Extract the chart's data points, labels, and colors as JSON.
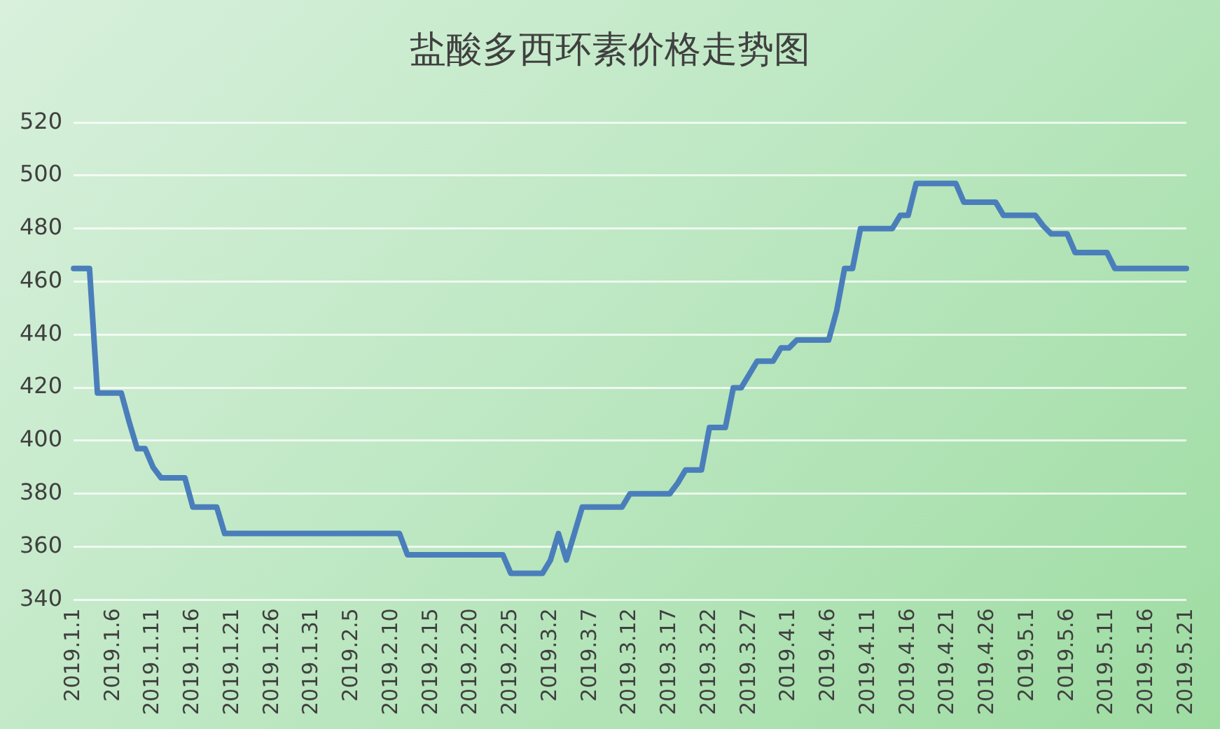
{
  "chart_data": {
    "type": "line",
    "title": "盐酸多西环素价格走势图",
    "categories": [
      "2019.1.1",
      null,
      null,
      null,
      null,
      "2019.1.6",
      null,
      null,
      null,
      null,
      "2019.1.11",
      null,
      null,
      null,
      null,
      "2019.1.16",
      null,
      null,
      null,
      null,
      "2019.1.21",
      null,
      null,
      null,
      null,
      "2019.1.26",
      null,
      null,
      null,
      null,
      "2019.1.31",
      null,
      null,
      null,
      null,
      "2019.2.5",
      null,
      null,
      null,
      null,
      "2019.2.10",
      null,
      null,
      null,
      null,
      "2019.2.15",
      null,
      null,
      null,
      null,
      "2019.2.20",
      null,
      null,
      null,
      null,
      "2019.2.25",
      null,
      null,
      null,
      null,
      "2019.3.2",
      null,
      null,
      null,
      null,
      "2019.3.7",
      null,
      null,
      null,
      null,
      "2019.3.12",
      null,
      null,
      null,
      null,
      "2019.3.17",
      null,
      null,
      null,
      null,
      "2019.3.22",
      null,
      null,
      null,
      null,
      "2019.3.27",
      null,
      null,
      null,
      null,
      "2019.4.1",
      null,
      null,
      null,
      null,
      "2019.4.6",
      null,
      null,
      null,
      null,
      "2019.4.11",
      null,
      null,
      null,
      null,
      "2019.4.16",
      null,
      null,
      null,
      null,
      "2019.4.21",
      null,
      null,
      null,
      null,
      "2019.4.26",
      null,
      null,
      null,
      null,
      "2019.5.1",
      null,
      null,
      null,
      null,
      "2019.5.6",
      null,
      null,
      null,
      null,
      "2019.5.11",
      null,
      null,
      null,
      null,
      "2019.5.16",
      null,
      null,
      null,
      null,
      "2019.5.21"
    ],
    "series": [
      {
        "color": "#4a7ebb",
        "values": [
          465,
          465,
          465,
          418,
          418,
          418,
          418,
          407,
          397,
          397,
          390,
          386,
          386,
          386,
          386,
          375,
          375,
          375,
          375,
          365,
          365,
          365,
          365,
          365,
          365,
          365,
          365,
          365,
          365,
          365,
          365,
          365,
          365,
          365,
          365,
          365,
          365,
          365,
          365,
          365,
          365,
          365,
          357,
          357,
          357,
          357,
          357,
          357,
          357,
          357,
          357,
          357,
          357,
          357,
          357,
          350,
          350,
          350,
          350,
          350,
          355,
          365,
          355,
          365,
          375,
          375,
          375,
          375,
          375,
          375,
          380,
          380,
          380,
          380,
          380,
          380,
          384,
          389,
          389,
          389,
          405,
          405,
          405,
          420,
          420,
          425,
          430,
          430,
          430,
          435,
          435,
          438,
          438,
          438,
          438,
          438,
          449,
          465,
          465,
          480,
          480,
          480,
          480,
          480,
          485,
          485,
          497,
          497,
          497,
          497,
          497,
          497,
          490,
          490,
          490,
          490,
          490,
          485,
          485,
          485,
          485,
          485,
          481,
          478,
          478,
          478,
          471,
          471,
          471,
          471,
          471,
          465,
          465,
          465,
          465,
          465,
          465,
          465,
          465,
          465,
          465
        ]
      }
    ],
    "ylim": [
      340,
      520
    ],
    "yticks": [
      340,
      360,
      380,
      400,
      420,
      440,
      460,
      480,
      500,
      520
    ],
    "grid": "y",
    "legend": false,
    "marker": "none",
    "line_style": "solid"
  }
}
